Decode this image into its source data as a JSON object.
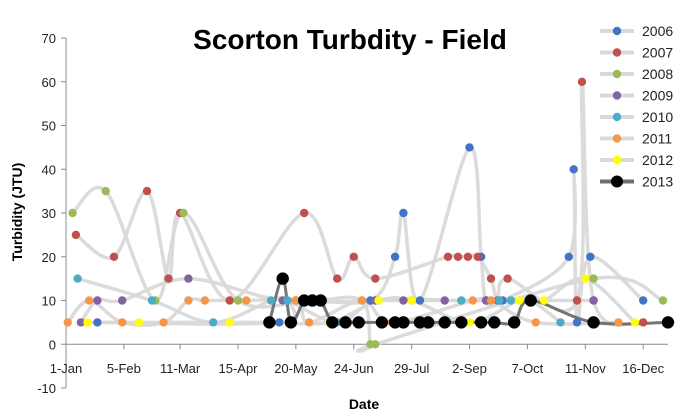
{
  "chart_data": {
    "type": "scatter",
    "title": "Scorton Turbdity - Field",
    "xlabel": "Date",
    "ylabel": "Turbidity (JTU)",
    "ylim": [
      -10,
      70
    ],
    "yticks": [
      "-10",
      "0",
      "10",
      "20",
      "30",
      "40",
      "50",
      "60",
      "70"
    ],
    "x_unit": "day of year",
    "xlim": [
      1,
      365
    ],
    "xticks": [
      {
        "day": 1,
        "label": "1-Jan"
      },
      {
        "day": 36,
        "label": "5-Feb"
      },
      {
        "day": 70,
        "label": "11-Mar"
      },
      {
        "day": 105,
        "label": "15-Apr"
      },
      {
        "day": 140,
        "label": "20-May"
      },
      {
        "day": 175,
        "label": "24-Jun"
      },
      {
        "day": 210,
        "label": "29-Jul"
      },
      {
        "day": 245,
        "label": "2-Sep"
      },
      {
        "day": 280,
        "label": "7-Oct"
      },
      {
        "day": 315,
        "label": "11-Nov"
      },
      {
        "day": 350,
        "label": "16-Dec"
      }
    ],
    "legend_position": "right",
    "grid": false,
    "smoothed_lines": true,
    "series": [
      {
        "name": "2006",
        "color": "#4472c4",
        "x": [
          20,
          130,
          140,
          185,
          200,
          205,
          215,
          245,
          252,
          255,
          265,
          305,
          308,
          310,
          318,
          350
        ],
        "y": [
          5,
          5,
          10,
          10,
          20,
          30,
          10,
          45,
          20,
          10,
          10,
          20,
          40,
          5,
          20,
          10
        ]
      },
      {
        "name": "2007",
        "color": "#c0504d",
        "x": [
          7,
          30,
          50,
          63,
          70,
          100,
          145,
          165,
          175,
          188,
          232,
          238,
          244,
          250,
          258,
          262,
          268,
          310,
          313,
          320,
          350
        ],
        "y": [
          25,
          20,
          35,
          15,
          30,
          10,
          30,
          15,
          20,
          15,
          20,
          20,
          20,
          20,
          15,
          10,
          15,
          10,
          60,
          10,
          5
        ]
      },
      {
        "name": "2008",
        "color": "#9bbb59",
        "x": [
          5,
          25,
          55,
          72,
          105,
          150,
          180,
          185,
          188,
          320,
          362
        ],
        "y": [
          30,
          35,
          10,
          30,
          10,
          10,
          10,
          0,
          0,
          15,
          10
        ]
      },
      {
        "name": "2009",
        "color": "#8064a2",
        "x": [
          10,
          20,
          35,
          75,
          132,
          188,
          205,
          210,
          230,
          255,
          320
        ],
        "y": [
          5,
          10,
          10,
          15,
          10,
          10,
          10,
          10,
          10,
          10,
          10
        ]
      },
      {
        "name": "2010",
        "color": "#4bacc6",
        "x": [
          8,
          53,
          90,
          125,
          135,
          165,
          190,
          240,
          263,
          270,
          282,
          300
        ],
        "y": [
          15,
          10,
          5,
          10,
          10,
          5,
          10,
          10,
          10,
          10,
          10,
          5
        ]
      },
      {
        "name": "2011",
        "color": "#f79646",
        "x": [
          2,
          15,
          35,
          60,
          75,
          85,
          110,
          140,
          148,
          180,
          198,
          247,
          258,
          285,
          335
        ],
        "y": [
          5,
          10,
          5,
          5,
          10,
          10,
          10,
          10,
          5,
          10,
          5,
          10,
          10,
          5,
          5
        ]
      },
      {
        "name": "2012",
        "color": "#ffff00",
        "x": [
          14,
          45,
          100,
          125,
          160,
          190,
          210,
          245,
          275,
          290,
          315,
          345
        ],
        "y": [
          5,
          5,
          5,
          5,
          5,
          10,
          10,
          5,
          10,
          10,
          15,
          5
        ]
      },
      {
        "name": "2013",
        "color": "#000000",
        "x": [
          124,
          132,
          137,
          145,
          150,
          155,
          162,
          170,
          178,
          192,
          200,
          205,
          215,
          220,
          230,
          240,
          252,
          260,
          272,
          282,
          320,
          365
        ],
        "y": [
          5,
          15,
          5,
          10,
          10,
          10,
          5,
          5,
          5,
          5,
          5,
          5,
          5,
          5,
          5,
          5,
          5,
          5,
          5,
          10,
          5,
          5
        ]
      }
    ]
  }
}
